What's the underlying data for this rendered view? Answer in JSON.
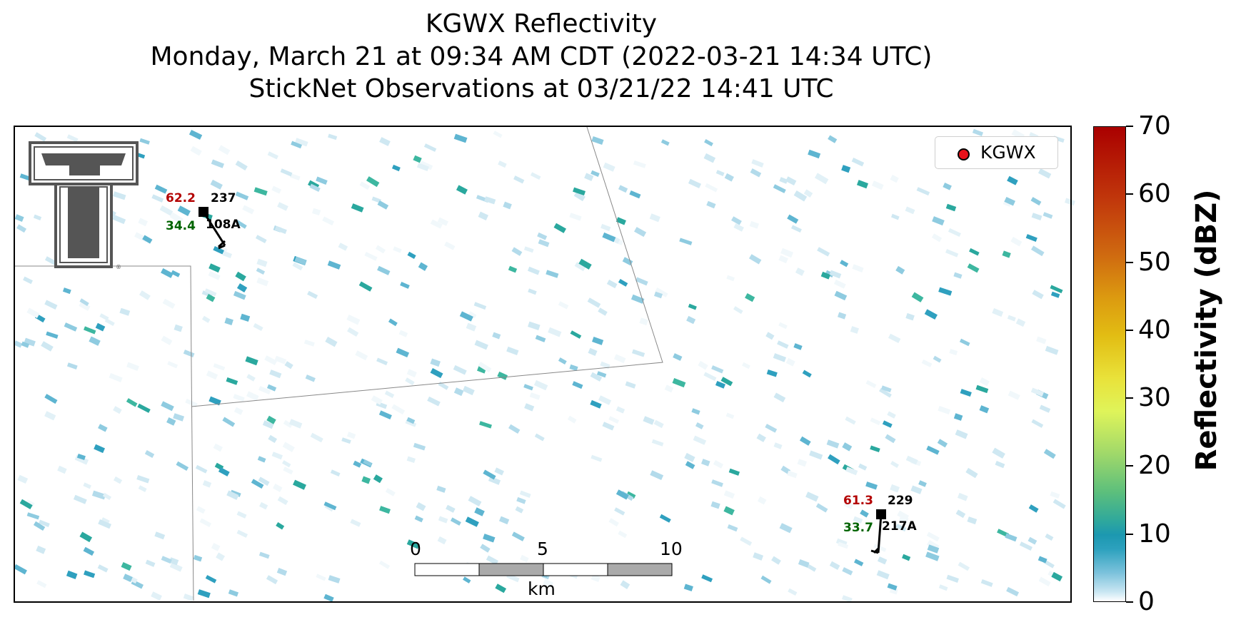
{
  "title": {
    "line1": "KGWX Reflectivity",
    "line2": "Monday, March 21 at 09:34 AM CDT (2022-03-21 14:34 UTC)",
    "line3": "StickNet Observations at 03/21/22 14:41 UTC"
  },
  "legend": {
    "radar_label": "KGWX",
    "radar_color": "#e8121a"
  },
  "colorbar": {
    "label": "Reflectivity (dBZ)",
    "ticks": [
      "70",
      "60",
      "50",
      "40",
      "30",
      "20",
      "10",
      "0"
    ]
  },
  "scale_bar": {
    "ticks": [
      "0",
      "5",
      "10"
    ],
    "unit": "km"
  },
  "stations": [
    {
      "temperature": "62.2",
      "direction": "237",
      "dewpoint": "34.4",
      "id": "108A"
    },
    {
      "temperature": "61.3",
      "direction": "229",
      "dewpoint": "33.7",
      "id": "217A"
    }
  ],
  "colors": {
    "temperature": "#b30000",
    "dewpoint": "#006400",
    "echo": "#2aa0be"
  },
  "logo": {
    "name": "texas-tech-double-t-logo"
  }
}
